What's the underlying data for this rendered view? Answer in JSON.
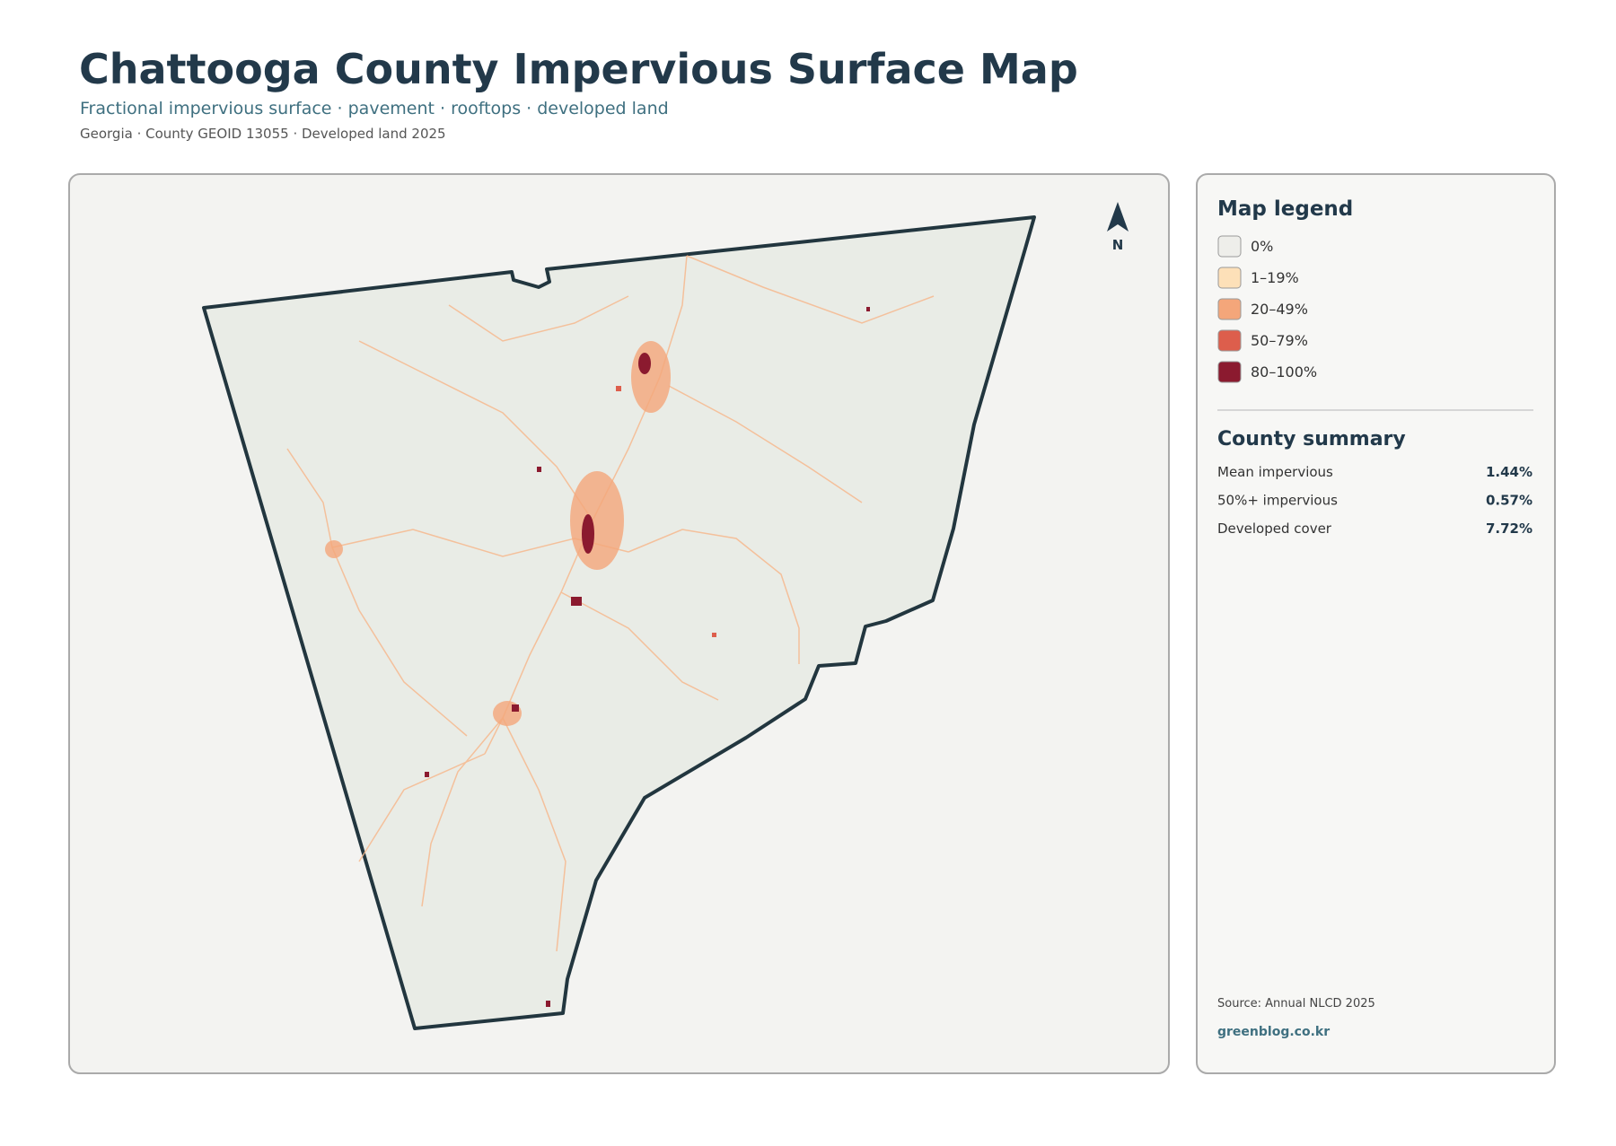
{
  "header": {
    "title": "Chattooga County Impervious Surface Map",
    "subtitle": "Fractional impervious surface · pavement · rooftops · developed land",
    "meta": "Georgia · County GEOID 13055 · Developed land 2025"
  },
  "map": {
    "north_label": "N"
  },
  "legend": {
    "title": "Map legend",
    "items": [
      {
        "label": "0%",
        "color": "#eeeeea"
      },
      {
        "label": "1–19%",
        "color": "#fde0b8"
      },
      {
        "label": "20–49%",
        "color": "#f4a67a"
      },
      {
        "label": "50–79%",
        "color": "#dd5e4c"
      },
      {
        "label": "80–100%",
        "color": "#8b1a2f"
      }
    ]
  },
  "summary": {
    "title": "County summary",
    "rows": [
      {
        "label": "Mean impervious",
        "value": "1.44%"
      },
      {
        "label": "50%+ impervious",
        "value": "0.57%"
      },
      {
        "label": "Developed cover",
        "value": "7.72%"
      }
    ]
  },
  "footer": {
    "source": "Source: Annual NLCD 2025",
    "site": "greenblog.co.kr"
  }
}
